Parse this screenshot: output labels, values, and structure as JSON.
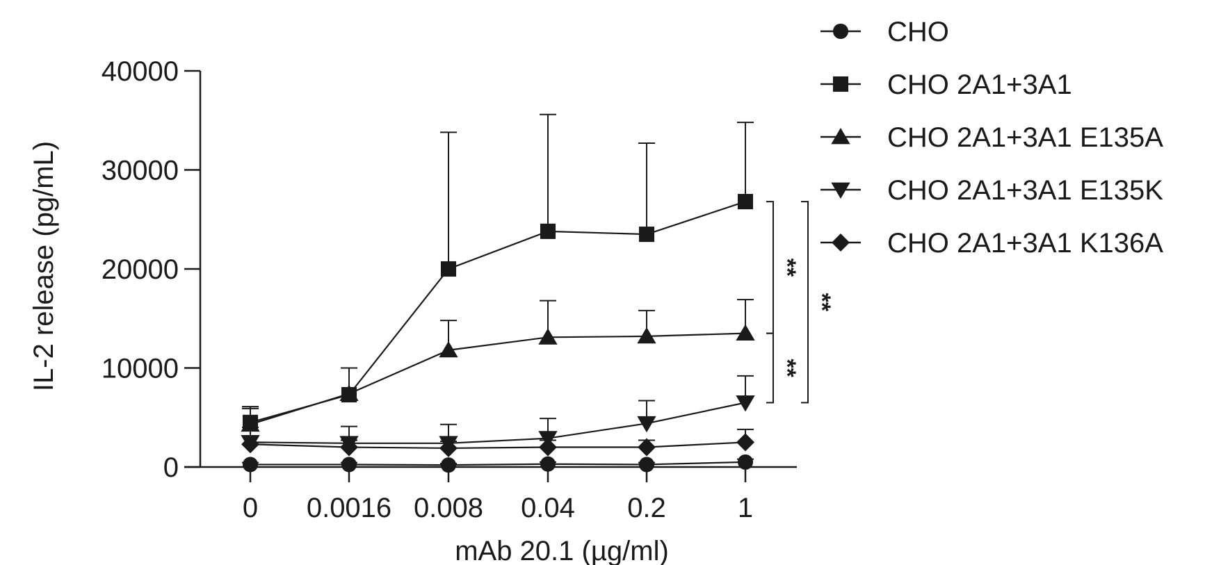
{
  "chart_data": {
    "type": "line",
    "title": "",
    "xlabel": "mAb 20.1 (µg/ml)",
    "ylabel": "IL-2 release (pg/mL)",
    "x_scale": "categorical",
    "categories": [
      "0",
      "0.0016",
      "0.008",
      "0.04",
      "0.2",
      "1"
    ],
    "ylim": [
      0,
      40000
    ],
    "yticks": [
      0,
      10000,
      20000,
      30000,
      40000
    ],
    "ytick_labels": [
      "0",
      "10000",
      "20000",
      "30000",
      "40000"
    ],
    "grid": false,
    "legend_position": "top-right",
    "color": "#1a1a1a",
    "series": [
      {
        "name": "CHO",
        "marker": "circle",
        "values": [
          250,
          250,
          200,
          300,
          250,
          500
        ],
        "error": [
          200,
          200,
          150,
          200,
          200,
          300
        ]
      },
      {
        "name": "CHO 2A1+3A1",
        "marker": "square",
        "values": [
          4500,
          7300,
          20000,
          23800,
          23500,
          26800
        ],
        "error": [
          1600,
          2700,
          13800,
          11800,
          9200,
          8000
        ]
      },
      {
        "name": "CHO 2A1+3A1 E135A",
        "marker": "triangle-up",
        "values": [
          4300,
          7400,
          11800,
          13100,
          13200,
          13500
        ],
        "error": [
          1600,
          2600,
          3000,
          3700,
          2600,
          3400
        ]
      },
      {
        "name": "CHO 2A1+3A1 E135K",
        "marker": "triangle-down",
        "values": [
          2500,
          2400,
          2400,
          2900,
          4400,
          6500
        ],
        "error": [
          1500,
          1700,
          1900,
          2000,
          2300,
          2700
        ]
      },
      {
        "name": "CHO 2A1+3A1 K136A",
        "marker": "diamond",
        "values": [
          2300,
          2000,
          1900,
          2000,
          2000,
          2500
        ],
        "error": [
          800,
          700,
          700,
          700,
          700,
          1300
        ]
      }
    ],
    "significance": [
      {
        "label": "**",
        "from_series": "CHO 2A1+3A1",
        "to_series": "CHO 2A1+3A1 E135A",
        "at": "1"
      },
      {
        "label": "**",
        "from_series": "CHO 2A1+3A1",
        "to_series": "CHO 2A1+3A1 E135K",
        "at": "1"
      },
      {
        "label": "**",
        "from_series": "CHO 2A1+3A1 E135A",
        "to_series": "CHO 2A1+3A1 E135K",
        "at": "1"
      }
    ]
  }
}
